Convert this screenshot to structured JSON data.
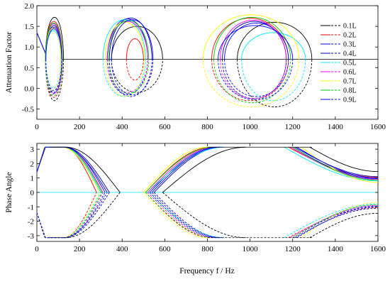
{
  "chart_data": [
    {
      "type": "line",
      "title": "",
      "xlabel": "",
      "ylabel": "Attenuation Factor",
      "xlim": [
        0,
        1600
      ],
      "ylim": [
        -0.75,
        2.0
      ],
      "xticks": [
        "0",
        "200",
        "400",
        "600",
        "800",
        "1000",
        "1200",
        "1400",
        "1600"
      ],
      "yticks": [
        "-0.5",
        "0.0",
        "0.5",
        "1.0",
        "1.5",
        "2.0"
      ],
      "baseline": 0.7,
      "legend": {
        "position": "right",
        "entries": [
          "0.1L",
          "0.2L",
          "0.3L",
          "0.4L",
          "0.5L",
          "0.6L",
          "0.7L",
          "0.8L",
          "0.9L"
        ]
      },
      "series": [
        {
          "name": "0.1L",
          "color": "#000000",
          "lobes": [
            {
              "x0": 40,
              "x1": 125,
              "top": 1.72,
              "bottom": -0.3
            },
            {
              "x0": 350,
              "x1": 590,
              "top": 1.5,
              "bottom": -0.1
            },
            {
              "x0": 940,
              "x1": 1290,
              "top": 1.6,
              "bottom": -0.45
            }
          ]
        },
        {
          "name": "0.2L",
          "color": "#ff0000",
          "lobes": [
            {
              "x0": 40,
              "x1": 120,
              "top": 1.62,
              "bottom": -0.22
            },
            {
              "x0": 420,
              "x1": 500,
              "top": 1.2,
              "bottom": 0.2
            },
            {
              "x0": 820,
              "x1": 1180,
              "top": 1.7,
              "bottom": -0.3
            }
          ]
        },
        {
          "name": "0.3L",
          "color": "#0000ff",
          "lobes": [
            {
              "x0": 40,
              "x1": 118,
              "top": 1.48,
              "bottom": -0.1
            },
            {
              "x0": 330,
              "x1": 520,
              "top": 1.68,
              "bottom": -0.15
            },
            {
              "x0": 880,
              "x1": 1180,
              "top": 1.58,
              "bottom": -0.2
            }
          ]
        },
        {
          "name": "0.4L",
          "color": "#0000aa",
          "lobes": [
            {
              "x0": 42,
              "x1": 118,
              "top": 1.52,
              "bottom": -0.12
            },
            {
              "x0": 340,
              "x1": 540,
              "top": 1.7,
              "bottom": -0.2
            },
            {
              "x0": 870,
              "x1": 1170,
              "top": 1.62,
              "bottom": -0.25
            }
          ]
        },
        {
          "name": "0.5L",
          "color": "#00e5ff",
          "lobes": [
            {
              "x0": 42,
              "x1": 112,
              "top": 1.4,
              "bottom": 0.0
            },
            {
              "x0": 310,
              "x1": 510,
              "top": 1.66,
              "bottom": -0.2
            },
            {
              "x0": 960,
              "x1": 1260,
              "top": 1.35,
              "bottom": -0.3
            }
          ]
        },
        {
          "name": "0.6L",
          "color": "#ff00ff",
          "lobes": [
            {
              "x0": 40,
              "x1": 118,
              "top": 1.56,
              "bottom": -0.14
            },
            {
              "x0": 330,
              "x1": 520,
              "top": 1.62,
              "bottom": -0.1
            },
            {
              "x0": 860,
              "x1": 1170,
              "top": 1.65,
              "bottom": -0.25
            }
          ]
        },
        {
          "name": "0.7L",
          "color": "#ffff00",
          "lobes": [
            {
              "x0": 40,
              "x1": 112,
              "top": 1.46,
              "bottom": -0.05
            },
            {
              "x0": 320,
              "x1": 505,
              "top": 1.6,
              "bottom": -0.2
            },
            {
              "x0": 780,
              "x1": 1230,
              "top": 1.78,
              "bottom": -0.45
            }
          ]
        },
        {
          "name": "0.8L",
          "color": "#00cc00",
          "lobes": [
            {
              "x0": 40,
              "x1": 120,
              "top": 1.58,
              "bottom": -0.18
            },
            {
              "x0": 335,
              "x1": 525,
              "top": 1.64,
              "bottom": -0.12
            },
            {
              "x0": 830,
              "x1": 1190,
              "top": 1.72,
              "bottom": -0.35
            }
          ]
        },
        {
          "name": "0.9L",
          "color": "#0000ff",
          "lobes": [
            {
              "x0": 42,
              "x1": 116,
              "top": 1.44,
              "bottom": -0.06
            },
            {
              "x0": 350,
              "x1": 545,
              "top": 1.66,
              "bottom": -0.16
            },
            {
              "x0": 850,
              "x1": 1200,
              "top": 1.52,
              "bottom": -0.28
            }
          ]
        }
      ]
    },
    {
      "type": "line",
      "title": "",
      "xlabel": "Frequency f / Hz",
      "ylabel": "Phase Angle",
      "xlim": [
        0,
        1600
      ],
      "ylim": [
        -3.4,
        3.4
      ],
      "xticks": [
        "0",
        "200",
        "400",
        "600",
        "800",
        "1000",
        "1200",
        "1400",
        "1600"
      ],
      "yticks": [
        "-3",
        "-2",
        "-1",
        "0",
        "1",
        "2",
        "3"
      ],
      "plateau": 3.14,
      "series": [
        {
          "name": "0.1L",
          "color": "#000000",
          "segments": {
            "low_end": 135,
            "mid_start": 390,
            "mid_end": 590,
            "mid_top": 980,
            "hi_start": 1280,
            "hi_end_value": 1.45
          }
        },
        {
          "name": "0.2L",
          "color": "#ff0000",
          "segments": {
            "low_end": 125,
            "mid_start": 280,
            "mid_end": 510,
            "mid_top": 820,
            "hi_start": 1180,
            "hi_end_value": 1.05
          }
        },
        {
          "name": "0.3L",
          "color": "#0000ff",
          "segments": {
            "low_end": 130,
            "mid_start": 320,
            "mid_end": 530,
            "mid_top": 850,
            "hi_start": 1200,
            "hi_end_value": 0.95
          }
        },
        {
          "name": "0.4L",
          "color": "#0000aa",
          "segments": {
            "low_end": 130,
            "mid_start": 340,
            "mid_end": 550,
            "mid_top": 870,
            "hi_start": 1210,
            "hi_end_value": 1.1
          }
        },
        {
          "name": "0.5L",
          "color": "#00e5ff",
          "segments": {
            "low_end": 120,
            "mid_start": 300,
            "mid_end": 520,
            "mid_top": 880,
            "hi_start": 1160,
            "hi_end_value": 0.8
          }
        },
        {
          "name": "0.6L",
          "color": "#ff00ff",
          "segments": {
            "low_end": 128,
            "mid_start": 310,
            "mid_end": 520,
            "mid_top": 840,
            "hi_start": 1190,
            "hi_end_value": 0.9
          }
        },
        {
          "name": "0.7L",
          "color": "#ffff00",
          "segments": {
            "low_end": 118,
            "mid_start": 295,
            "mid_end": 500,
            "mid_top": 800,
            "hi_start": 1240,
            "hi_end_value": 0.7
          }
        },
        {
          "name": "0.8L",
          "color": "#00cc00",
          "segments": {
            "low_end": 126,
            "mid_start": 305,
            "mid_end": 510,
            "mid_top": 830,
            "hi_start": 1200,
            "hi_end_value": 0.85
          }
        },
        {
          "name": "0.9L",
          "color": "#0000ff",
          "segments": {
            "low_end": 124,
            "mid_start": 330,
            "mid_end": 540,
            "mid_top": 860,
            "hi_start": 1220,
            "hi_end_value": 1.0
          }
        }
      ]
    }
  ]
}
